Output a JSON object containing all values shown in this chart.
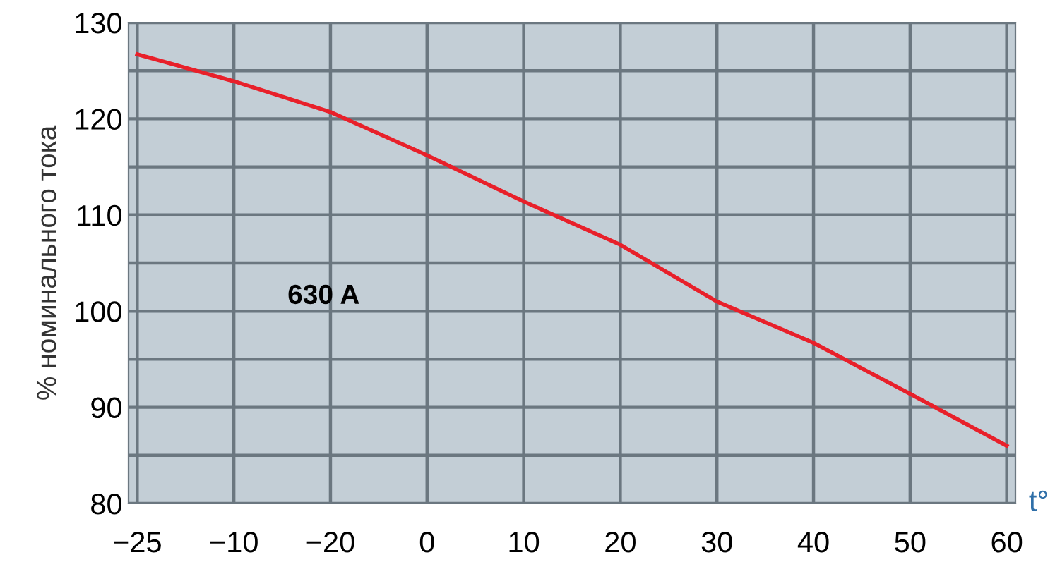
{
  "chart_data": {
    "type": "line",
    "xlabel": "t°",
    "ylabel": "% номинального тока",
    "annotations": [
      "630 A"
    ],
    "categories": [
      "−25",
      "−10",
      "−20",
      "0",
      "10",
      "20",
      "30",
      "40",
      "50",
      "60"
    ],
    "series": [
      {
        "color": "#e8202a",
        "values": [
          126.7,
          123.9,
          120.7,
          116.2,
          111.4,
          106.9,
          101.0,
          96.7,
          91.4,
          86.0
        ]
      }
    ],
    "ylim": [
      80,
      130
    ],
    "yticks": [
      80,
      {
        "value": 85,
        "label": null
      },
      90,
      {
        "value": 95,
        "label": null
      },
      100,
      {
        "value": 105,
        "label": null
      },
      110,
      {
        "value": 115,
        "label": null
      },
      120,
      {
        "value": 125,
        "label": null
      },
      130
    ],
    "grid": true,
    "marker": "none",
    "line_style": "solid",
    "legend": false
  }
}
